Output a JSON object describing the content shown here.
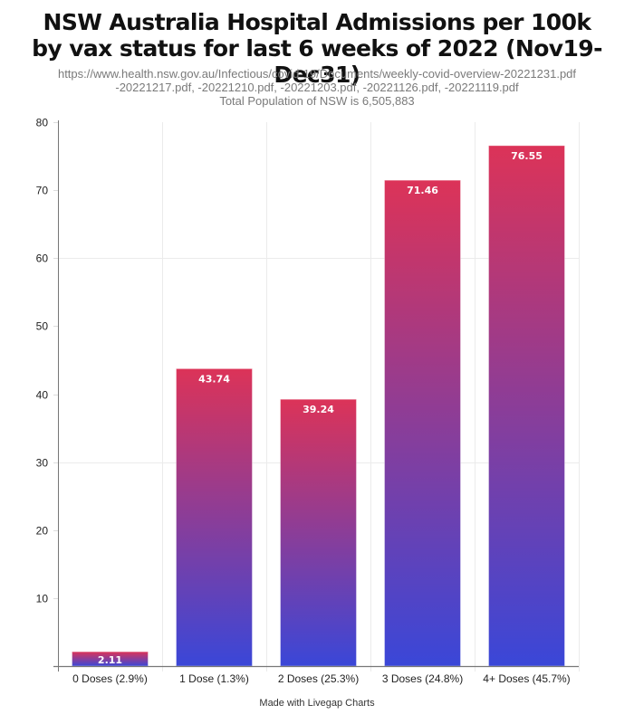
{
  "chart_data": {
    "type": "bar",
    "title_lines": [
      "NSW Australia Hospital Admissions per 100k",
      "by vax status for last 6 weeks of 2022 (Nov19-Dec31)"
    ],
    "subtitle_lines": [
      "https://www.health.nsw.gov.au/Infectious/covid-19/Documents/weekly-covid-overview-20221231.pdf",
      "-20221217.pdf, -20221210.pdf, -20221203.pdf, -20221126.pdf, -20221119.pdf",
      "Total Population of NSW is 6,505,883"
    ],
    "categories": [
      "0 Doses (2.9%)",
      "1 Dose (1.3%)",
      "2 Doses (25.3%)",
      "3 Doses (24.8%)",
      "4+ Doses (45.7%)"
    ],
    "values": [
      2.11,
      43.74,
      39.24,
      71.46,
      76.55
    ],
    "data_labels": [
      "2.11",
      "43.74",
      "39.24",
      "71.46",
      "76.55"
    ],
    "xlabel": "",
    "ylabel": "",
    "ylim": [
      0,
      80
    ],
    "yticks": [
      10,
      20,
      30,
      40,
      50,
      60,
      70,
      80
    ],
    "ytick_labels": [
      "10",
      "20",
      "30",
      "40",
      "50",
      "60",
      "70",
      "80"
    ],
    "horizontal_gridlines_at": [
      30,
      60
    ],
    "grid": true,
    "legend": "none",
    "colors": {
      "bar_gradient_top": "#dc3358",
      "bar_gradient_bottom": "#3a47d8",
      "axis": "#777777",
      "grid": "#ebebeb"
    }
  },
  "footer": "Made with Livegap Charts"
}
